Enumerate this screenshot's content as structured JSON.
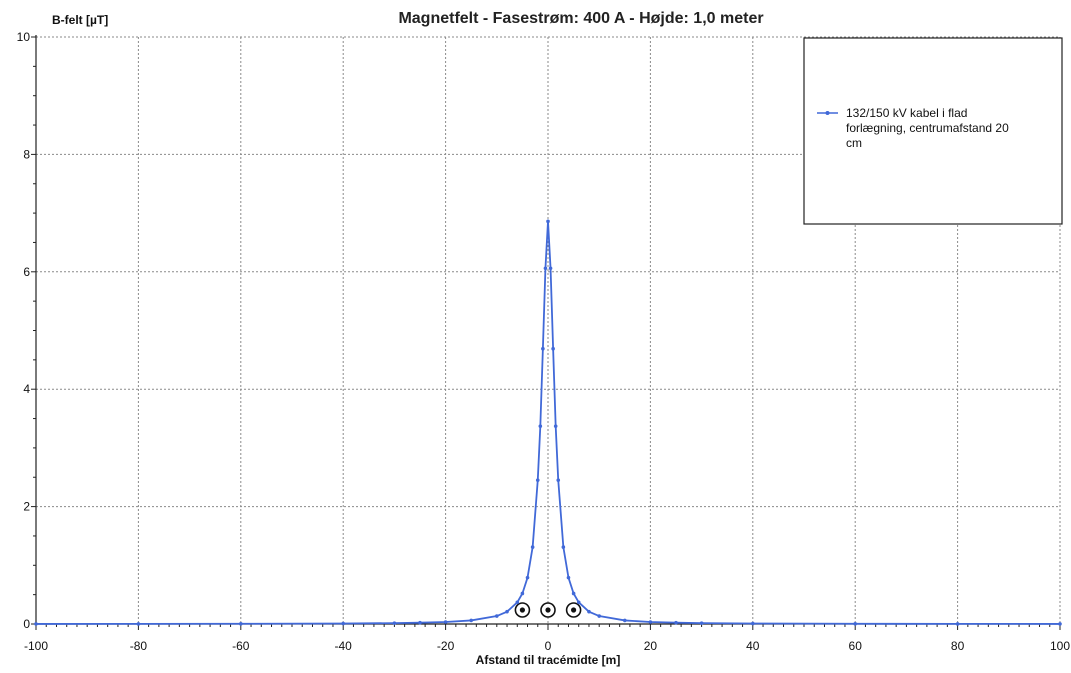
{
  "chart_data": {
    "type": "line",
    "title": "Magnetfelt  -  Fasestrøm: 400 A  -  Højde: 1,0 meter",
    "xlabel": "Afstand til tracémidte [m]",
    "ylabel": "B-felt [µT]",
    "xlim": [
      -100,
      100
    ],
    "ylim": [
      0,
      10
    ],
    "xticks": [
      "-100",
      "-80",
      "-60",
      "-40",
      "-20",
      "0",
      "20",
      "40",
      "60",
      "80",
      "100"
    ],
    "yticks": [
      "0",
      "2",
      "4",
      "6",
      "8",
      "10"
    ],
    "grid": true,
    "legend_position": "top-right",
    "conductor_positions_x": [
      -5,
      0,
      5
    ],
    "series": [
      {
        "name": "132/150 kV kabel i flad forlægning, centrumafstand 20 cm",
        "color": "#4169d8",
        "marker": "dot",
        "x": [
          -100,
          -80,
          -60,
          -40,
          -30,
          -25,
          -20,
          -15,
          -10,
          -8,
          -6,
          -5,
          -4,
          -3,
          -2,
          -1.5,
          -1,
          -0.5,
          0,
          0.5,
          1,
          1.5,
          2,
          3,
          4,
          5,
          6,
          8,
          10,
          15,
          20,
          25,
          30,
          40,
          60,
          80,
          100
        ],
        "y": [
          0.0014,
          0.0021,
          0.0039,
          0.0087,
          0.015,
          0.022,
          0.034,
          0.061,
          0.136,
          0.21,
          0.37,
          0.52,
          0.79,
          1.31,
          2.45,
          3.37,
          4.69,
          6.06,
          6.86,
          6.06,
          4.69,
          3.37,
          2.45,
          1.31,
          0.79,
          0.52,
          0.37,
          0.21,
          0.136,
          0.061,
          0.034,
          0.022,
          0.015,
          0.0087,
          0.0039,
          0.0021,
          0.0014
        ]
      }
    ]
  }
}
